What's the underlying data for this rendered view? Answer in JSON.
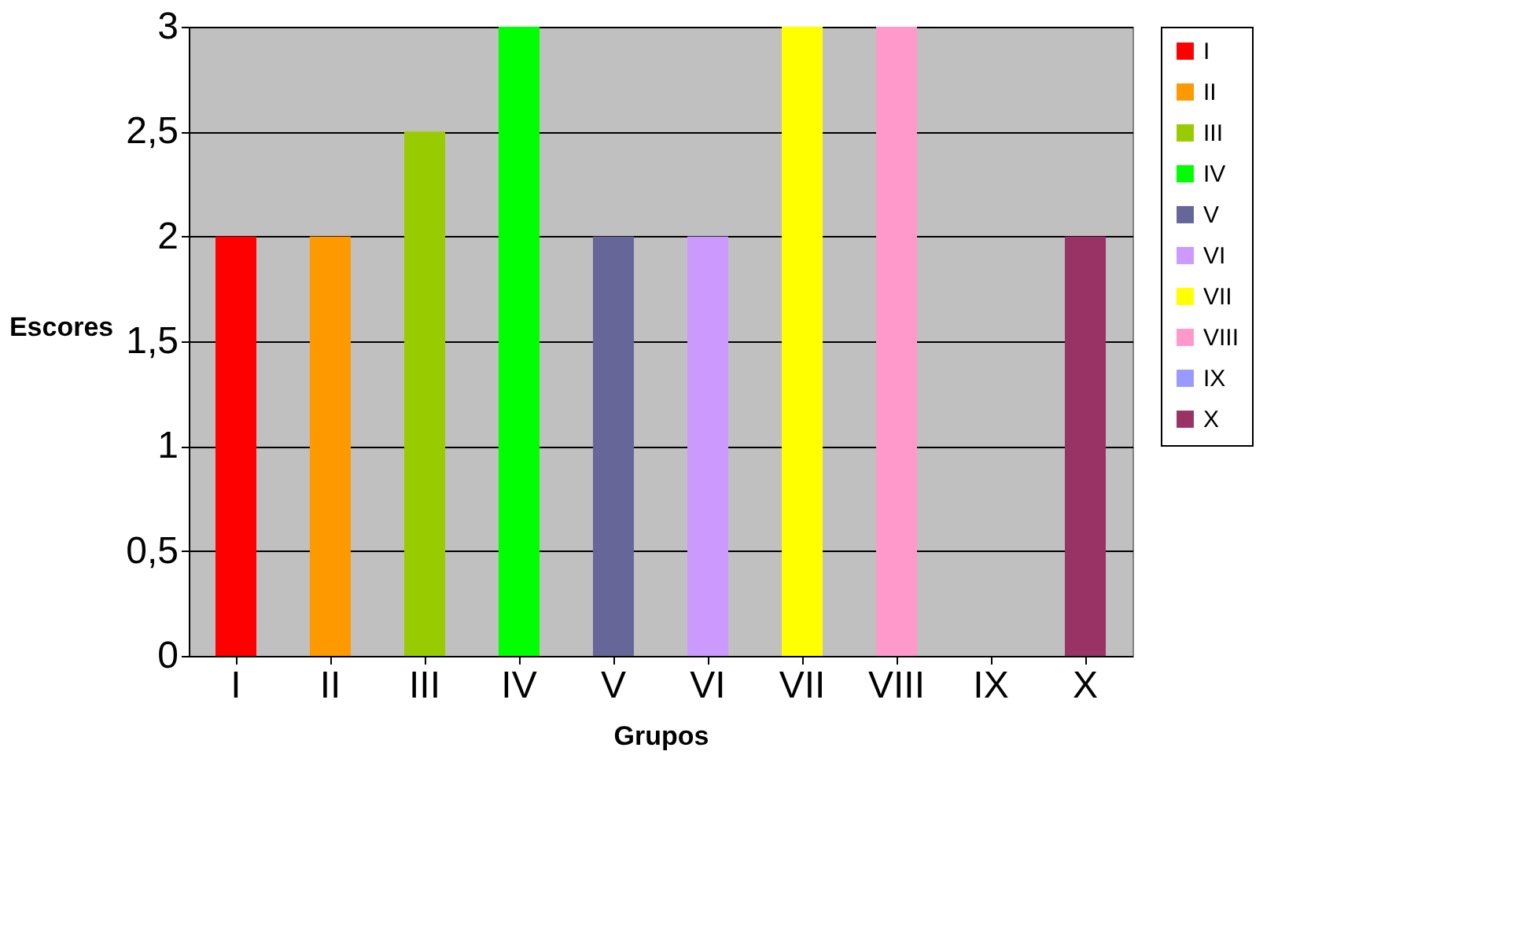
{
  "chart_data": {
    "type": "bar",
    "xlabel": "Grupos",
    "ylabel": "Escores",
    "categories": [
      "I",
      "II",
      "III",
      "IV",
      "V",
      "VI",
      "VII",
      "VIII",
      "IX",
      "X"
    ],
    "series": [
      {
        "name": "I",
        "color": "#ff0000",
        "values": [
          2,
          null,
          null,
          null,
          null,
          null,
          null,
          null,
          null,
          null
        ]
      },
      {
        "name": "II",
        "color": "#ff9900",
        "values": [
          null,
          2,
          null,
          null,
          null,
          null,
          null,
          null,
          null,
          null
        ]
      },
      {
        "name": "III",
        "color": "#99cc00",
        "values": [
          null,
          null,
          2.5,
          null,
          null,
          null,
          null,
          null,
          null,
          null
        ]
      },
      {
        "name": "IV",
        "color": "#00ff00",
        "values": [
          null,
          null,
          null,
          3,
          null,
          null,
          null,
          null,
          null,
          null
        ]
      },
      {
        "name": "V",
        "color": "#666699",
        "values": [
          null,
          null,
          null,
          null,
          2,
          null,
          null,
          null,
          null,
          null
        ]
      },
      {
        "name": "VI",
        "color": "#cc99ff",
        "values": [
          null,
          null,
          null,
          null,
          null,
          2,
          null,
          null,
          null,
          null
        ]
      },
      {
        "name": "VII",
        "color": "#ffff00",
        "values": [
          null,
          null,
          null,
          null,
          null,
          null,
          3,
          null,
          null,
          null
        ]
      },
      {
        "name": "VIII",
        "color": "#ff99cc",
        "values": [
          null,
          null,
          null,
          null,
          null,
          null,
          null,
          3,
          null,
          null
        ]
      },
      {
        "name": "IX",
        "color": "#9999ff",
        "values": [
          null,
          null,
          null,
          null,
          null,
          null,
          null,
          null,
          0,
          null
        ]
      },
      {
        "name": "X",
        "color": "#993366",
        "values": [
          null,
          null,
          null,
          null,
          null,
          null,
          null,
          null,
          null,
          2
        ]
      }
    ],
    "ylim": [
      0,
      3
    ],
    "yticks": [
      0,
      {
        "value": 0.5,
        "label": "0,5"
      },
      1,
      {
        "value": 1.5,
        "label": "1,5"
      },
      2,
      {
        "value": 2.5,
        "label": "2,5"
      },
      3
    ],
    "grid": "y",
    "legend": "right"
  }
}
